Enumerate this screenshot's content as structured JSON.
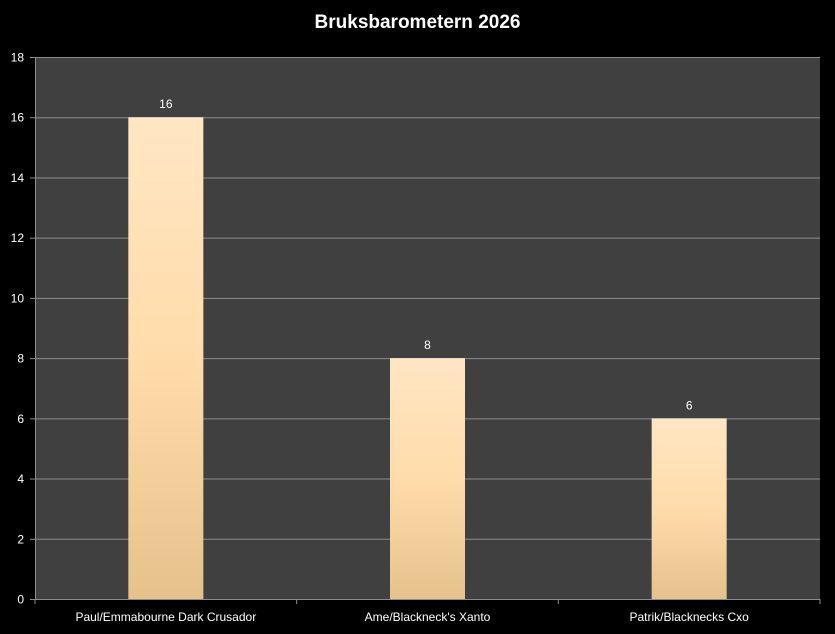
{
  "chart_data": {
    "type": "bar",
    "title": "Bruksbarometern 2026",
    "categories": [
      "Paul/Emmabourne Dark Crusador",
      "Ame/Blackneck's Xanto",
      "Patrik/Blacknecks Cxo"
    ],
    "values": [
      16,
      8,
      6
    ],
    "data_labels": [
      "16",
      "8",
      "6"
    ],
    "xlabel": "",
    "ylabel": "",
    "ylim": [
      0,
      18
    ],
    "yticks": [
      "0",
      "2",
      "4",
      "6",
      "8",
      "10",
      "12",
      "14",
      "16",
      "18"
    ],
    "grid": true,
    "legend": "none",
    "colors": {
      "background": "#000000",
      "plot_area": "#404040",
      "bar_top": "#ffe4bc",
      "bar_bottom": "#e5c28c",
      "gridline": "#8c8c8c"
    }
  }
}
